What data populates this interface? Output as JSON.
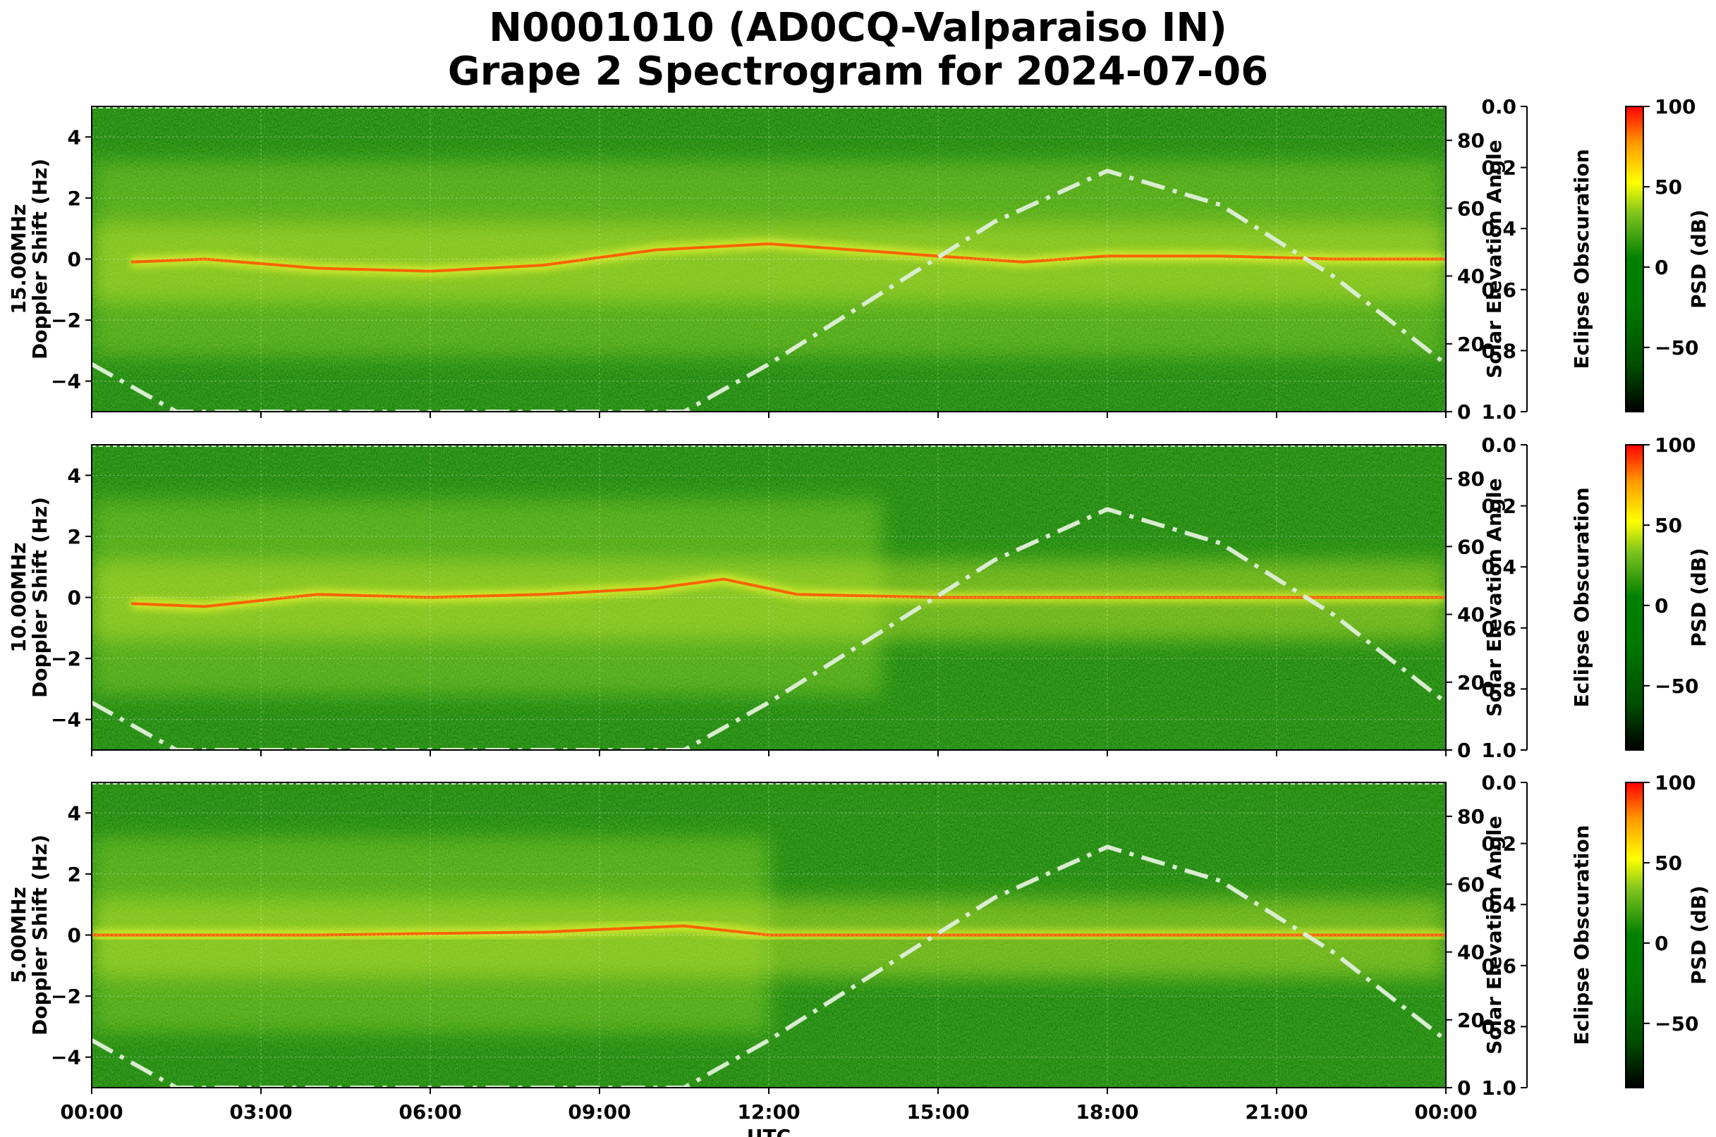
{
  "figure": {
    "title_line1": "N0001010 (AD0CQ-Valparaiso IN)",
    "title_line2": "Grape 2 Spectrogram for 2024-07-06"
  },
  "chart_data": [
    {
      "type": "heatmap",
      "frequency_label": "15.00MHz",
      "ylabel": "Doppler Shift (Hz)",
      "ylim": [
        -5,
        5
      ],
      "yticks": [
        "4",
        "2",
        "0",
        "−2",
        "−4"
      ],
      "xlabel": "",
      "xlim": [
        "00:00",
        "24:00"
      ],
      "xticks": [],
      "right_axis_label": "Solar Elevation Angle",
      "right_axis_ylim": [
        0,
        90
      ],
      "right_axis_ticks": [
        "80",
        "60",
        "40",
        "20",
        "0"
      ],
      "eclipse_axis_label": "Eclipse Obscuration",
      "eclipse_axis_ylim": [
        1.0,
        0.0
      ],
      "eclipse_axis_ticks": [
        "0.0",
        "0.2",
        "0.4",
        "0.6",
        "0.8",
        "1.0"
      ],
      "colorbar_label": "PSD (dB)",
      "colorbar_range": [
        -90,
        100
      ],
      "colorbar_ticks": [
        "100",
        "50",
        "0",
        "−50"
      ],
      "colormap": [
        "#000000",
        "#006400",
        "#008000",
        "#9acd32",
        "#ffff00",
        "#ff8c00",
        "#ff0000"
      ],
      "grid": true,
      "carrier_doppler_hz": [
        {
          "t": 0.7,
          "hz": -0.1
        },
        {
          "t": 2,
          "hz": 0.0
        },
        {
          "t": 4,
          "hz": -0.3
        },
        {
          "t": 6,
          "hz": -0.4
        },
        {
          "t": 8,
          "hz": -0.2
        },
        {
          "t": 10,
          "hz": 0.3
        },
        {
          "t": 12,
          "hz": 0.5
        },
        {
          "t": 13.5,
          "hz": 0.3
        },
        {
          "t": 15,
          "hz": 0.1
        },
        {
          "t": 16.5,
          "hz": -0.1
        },
        {
          "t": 18,
          "hz": 0.1
        },
        {
          "t": 20,
          "hz": 0.1
        },
        {
          "t": 22,
          "hz": 0.0
        },
        {
          "t": 24,
          "hz": 0.0
        }
      ],
      "solar_elevation_series": [
        {
          "t": 0,
          "deg": 14
        },
        {
          "t": 1.5,
          "deg": 0
        },
        {
          "t": 10.5,
          "deg": 0
        },
        {
          "t": 12,
          "deg": 14
        },
        {
          "t": 14,
          "deg": 35
        },
        {
          "t": 16,
          "deg": 56
        },
        {
          "t": 18,
          "deg": 71
        },
        {
          "t": 20,
          "deg": 61
        },
        {
          "t": 22,
          "deg": 40
        },
        {
          "t": 24,
          "deg": 14
        }
      ]
    },
    {
      "type": "heatmap",
      "frequency_label": "10.00MHz",
      "ylabel": "Doppler Shift (Hz)",
      "ylim": [
        -5,
        5
      ],
      "yticks": [
        "4",
        "2",
        "0",
        "−2",
        "−4"
      ],
      "xlabel": "",
      "xlim": [
        "00:00",
        "24:00"
      ],
      "xticks": [],
      "right_axis_label": "Solar Elevation Angle",
      "right_axis_ylim": [
        0,
        90
      ],
      "right_axis_ticks": [
        "80",
        "60",
        "40",
        "20",
        "0"
      ],
      "eclipse_axis_label": "Eclipse Obscuration",
      "eclipse_axis_ylim": [
        1.0,
        0.0
      ],
      "eclipse_axis_ticks": [
        "0.0",
        "0.2",
        "0.4",
        "0.6",
        "0.8",
        "1.0"
      ],
      "colorbar_label": "PSD (dB)",
      "colorbar_range": [
        -90,
        100
      ],
      "colorbar_ticks": [
        "100",
        "50",
        "0",
        "−50"
      ],
      "colormap": [
        "#000000",
        "#006400",
        "#008000",
        "#9acd32",
        "#ffff00",
        "#ff8c00",
        "#ff0000"
      ],
      "grid": true,
      "carrier_doppler_hz": [
        {
          "t": 0.7,
          "hz": -0.2
        },
        {
          "t": 2,
          "hz": -0.3
        },
        {
          "t": 4,
          "hz": 0.1
        },
        {
          "t": 6,
          "hz": 0.0
        },
        {
          "t": 8,
          "hz": 0.1
        },
        {
          "t": 10,
          "hz": 0.3
        },
        {
          "t": 11.2,
          "hz": 0.6
        },
        {
          "t": 12.5,
          "hz": 0.1
        },
        {
          "t": 15,
          "hz": 0.0
        },
        {
          "t": 18,
          "hz": 0.0
        },
        {
          "t": 21,
          "hz": 0.0
        },
        {
          "t": 24,
          "hz": 0.0
        }
      ],
      "solar_elevation_series": [
        {
          "t": 0,
          "deg": 14
        },
        {
          "t": 1.5,
          "deg": 0
        },
        {
          "t": 10.5,
          "deg": 0
        },
        {
          "t": 12,
          "deg": 14
        },
        {
          "t": 14,
          "deg": 35
        },
        {
          "t": 16,
          "deg": 56
        },
        {
          "t": 18,
          "deg": 71
        },
        {
          "t": 20,
          "deg": 61
        },
        {
          "t": 22,
          "deg": 40
        },
        {
          "t": 24,
          "deg": 14
        }
      ]
    },
    {
      "type": "heatmap",
      "frequency_label": "5.00MHz",
      "ylabel": "Doppler Shift (Hz)",
      "ylim": [
        -5,
        5
      ],
      "yticks": [
        "4",
        "2",
        "0",
        "−2",
        "−4"
      ],
      "xlabel": "UTC",
      "xlim": [
        "00:00",
        "24:00"
      ],
      "xticks": [
        "00:00",
        "03:00",
        "06:00",
        "09:00",
        "12:00",
        "15:00",
        "18:00",
        "21:00",
        "00:00"
      ],
      "right_axis_label": "Solar Elevation Angle",
      "right_axis_ylim": [
        0,
        90
      ],
      "right_axis_ticks": [
        "80",
        "60",
        "40",
        "20",
        "0"
      ],
      "eclipse_axis_label": "Eclipse Obscuration",
      "eclipse_axis_ylim": [
        1.0,
        0.0
      ],
      "eclipse_axis_ticks": [
        "0.0",
        "0.2",
        "0.4",
        "0.6",
        "0.8",
        "1.0"
      ],
      "colorbar_label": "PSD (dB)",
      "colorbar_range": [
        -90,
        100
      ],
      "colorbar_ticks": [
        "100",
        "50",
        "0",
        "−50"
      ],
      "colormap": [
        "#000000",
        "#006400",
        "#008000",
        "#9acd32",
        "#ffff00",
        "#ff8c00",
        "#ff0000"
      ],
      "grid": true,
      "carrier_doppler_hz": [
        {
          "t": 0,
          "hz": 0.0
        },
        {
          "t": 4,
          "hz": 0.0
        },
        {
          "t": 8,
          "hz": 0.1
        },
        {
          "t": 10.5,
          "hz": 0.3
        },
        {
          "t": 12,
          "hz": 0.0
        },
        {
          "t": 18,
          "hz": 0.0
        },
        {
          "t": 24,
          "hz": 0.0
        }
      ],
      "solar_elevation_series": [
        {
          "t": 0,
          "deg": 14
        },
        {
          "t": 1.5,
          "deg": 0
        },
        {
          "t": 10.5,
          "deg": 0
        },
        {
          "t": 12,
          "deg": 14
        },
        {
          "t": 14,
          "deg": 35
        },
        {
          "t": 16,
          "deg": 56
        },
        {
          "t": 18,
          "deg": 71
        },
        {
          "t": 20,
          "deg": 61
        },
        {
          "t": 22,
          "deg": 40
        },
        {
          "t": 24,
          "deg": 14
        }
      ]
    }
  ]
}
